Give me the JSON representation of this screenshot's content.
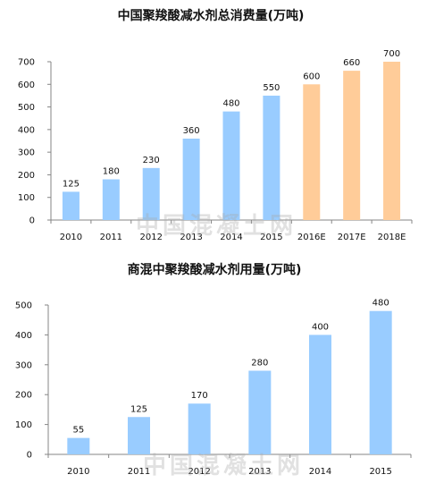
{
  "watermark": "中国混凝土网",
  "colors": {
    "actual": "#99CCFF",
    "estimate": "#FFCC99",
    "axis": "#868686"
  },
  "chart_data": [
    {
      "type": "bar",
      "title": "中国聚羧酸减水剂总消费量(万吨)",
      "categories": [
        "2010",
        "2011",
        "2012",
        "2013",
        "2014",
        "2015",
        "2016E",
        "2017E",
        "2018E"
      ],
      "values": [
        125,
        180,
        230,
        360,
        480,
        550,
        600,
        660,
        700
      ],
      "estimate_from_index": 6,
      "yticks": [
        0,
        100,
        200,
        300,
        400,
        500,
        600,
        700
      ],
      "ylim": [
        0,
        700
      ],
      "grid": false
    },
    {
      "type": "bar",
      "title": "商混中聚羧酸减水剂用量(万吨)",
      "categories": [
        "2010",
        "2011",
        "2012",
        "2013",
        "2014",
        "2015"
      ],
      "values": [
        55,
        125,
        170,
        280,
        400,
        480
      ],
      "yticks": [
        0,
        100,
        200,
        300,
        400,
        500
      ],
      "ylim": [
        0,
        500
      ],
      "grid": false
    }
  ]
}
